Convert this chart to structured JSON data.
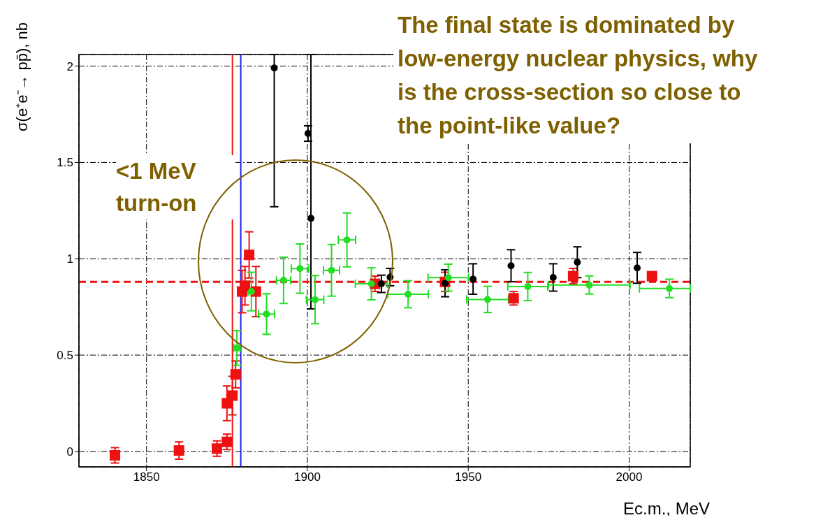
{
  "chart_data": {
    "type": "scatter",
    "annotations": [
      "The final state is dominated by low-energy nuclear physics, why is the cross-section so close to the point-like value?",
      "<1 MeV turn-on"
    ],
    "xlabel": "Ec.m., MeV",
    "ylabel": "σ(e⁺e⁻→ pp̄), nb",
    "xlim": [
      1829,
      2019
    ],
    "xticks": [
      1850,
      1900,
      1950,
      2000
    ],
    "ylim": [
      -0.08,
      2.06
    ],
    "yticks": [
      0,
      0.5,
      1,
      1.5,
      2
    ],
    "grid": true,
    "series": [
      {
        "color": "#ee1111",
        "marker": "square",
        "x": [
          1840.2,
          1860.1,
          1871.9,
          1875,
          1875,
          1876.7,
          1877.7,
          1879.7,
          1880.6,
          1881.9,
          1884,
          1921,
          1942.8,
          1964.1,
          1982.6,
          2007.1
        ],
        "values": [
          -0.02,
          0.005,
          0.015,
          0.05,
          0.25,
          0.29,
          0.4,
          0.83,
          0.86,
          1.02,
          0.83,
          0.87,
          0.88,
          0.795,
          0.91,
          0.91
        ],
        "errors": [
          0.04,
          0.045,
          0.04,
          0.04,
          0.09,
          0.1,
          0.07,
          0.11,
          0.1,
          0.12,
          0.13,
          0.04,
          0.05,
          0.035,
          0.04,
          0.02
        ]
      },
      {
        "color": "#000000",
        "marker": "circle",
        "x": [
          1889.7,
          1900.2,
          1901.1,
          1923,
          1925.7,
          1942.8,
          1951.5,
          1963.3,
          1976.4,
          1983.9,
          2002.5
        ],
        "values": [
          1.99,
          1.65,
          1.21,
          0.87,
          0.905,
          0.873,
          0.895,
          0.964,
          0.903,
          0.982,
          0.953
        ],
        "errors": [
          [
            1.27,
            2.06
          ],
          0.04,
          [
            0.74,
            2.06
          ],
          0.045,
          0.045,
          0.07,
          0.079,
          0.083,
          0.071,
          0.08,
          0.08
        ]
      },
      {
        "color": "#22dd22",
        "marker": "circle",
        "x": [
          1878.1,
          1882.6,
          1887.3,
          1892.6,
          1897.7,
          1902.4,
          1907.5,
          1912.3,
          1919.9,
          1931.3,
          1943.8,
          1956,
          1968.5,
          1987.6,
          2012.5
        ],
        "values": [
          0.537,
          0.83,
          0.713,
          0.888,
          0.949,
          0.788,
          0.94,
          1.098,
          0.87,
          0.816,
          0.902,
          0.789,
          0.856,
          0.864,
          0.846
        ],
        "errors": [
          0.09,
          0.1,
          0.105,
          0.12,
          0.128,
          0.125,
          0.134,
          0.14,
          0.083,
          0.07,
          0.07,
          0.068,
          0.073,
          0.047,
          0.048
        ],
        "xerrors": [
          1,
          1,
          2.5,
          2.2,
          2.7,
          2.7,
          2.5,
          2.7,
          5,
          6.3,
          6.3,
          6.5,
          6.2,
          12.7,
          [
            2003.2,
            2019
          ]
        ]
      }
    ],
    "ref_lines": [
      {
        "axis": "y",
        "value": 0.88,
        "color": "#ee1111",
        "line_style": "dashed"
      },
      {
        "axis": "x",
        "value": 1876.7,
        "color": "#ee1111",
        "line_style": "solid"
      },
      {
        "axis": "x",
        "value": 1879.3,
        "color": "#2222ee",
        "line_style": "solid"
      }
    ]
  }
}
